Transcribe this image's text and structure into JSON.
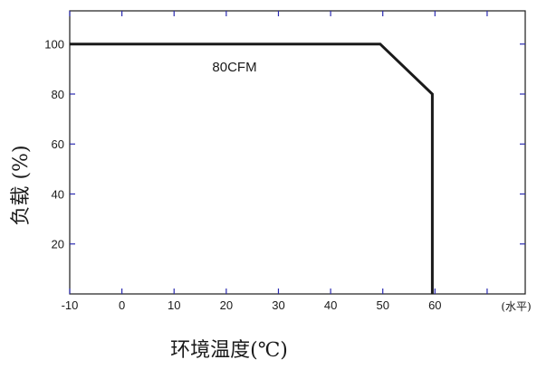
{
  "chart_data": {
    "type": "line",
    "xlabel": "环境温度(℃)",
    "ylabel": "负载 (%)",
    "x_axis_note": "(水平)",
    "x_ticks": [
      -10,
      0,
      10,
      20,
      30,
      40,
      50,
      60
    ],
    "x_tick_marks": [
      -10,
      0,
      10,
      20,
      30,
      40,
      50,
      60,
      70
    ],
    "y_ticks": [
      20,
      40,
      60,
      80,
      100
    ],
    "xlim": [
      -10,
      77.3
    ],
    "ylim": [
      0,
      113.3
    ],
    "grid": false,
    "series": [
      {
        "name": "80CFM",
        "x": [
          -10,
          49.5,
          59.5,
          59.5
        ],
        "y": [
          100,
          100,
          80,
          0
        ]
      }
    ],
    "line_color": "#1a1a1a",
    "tick_color": "#2a2ab0"
  }
}
